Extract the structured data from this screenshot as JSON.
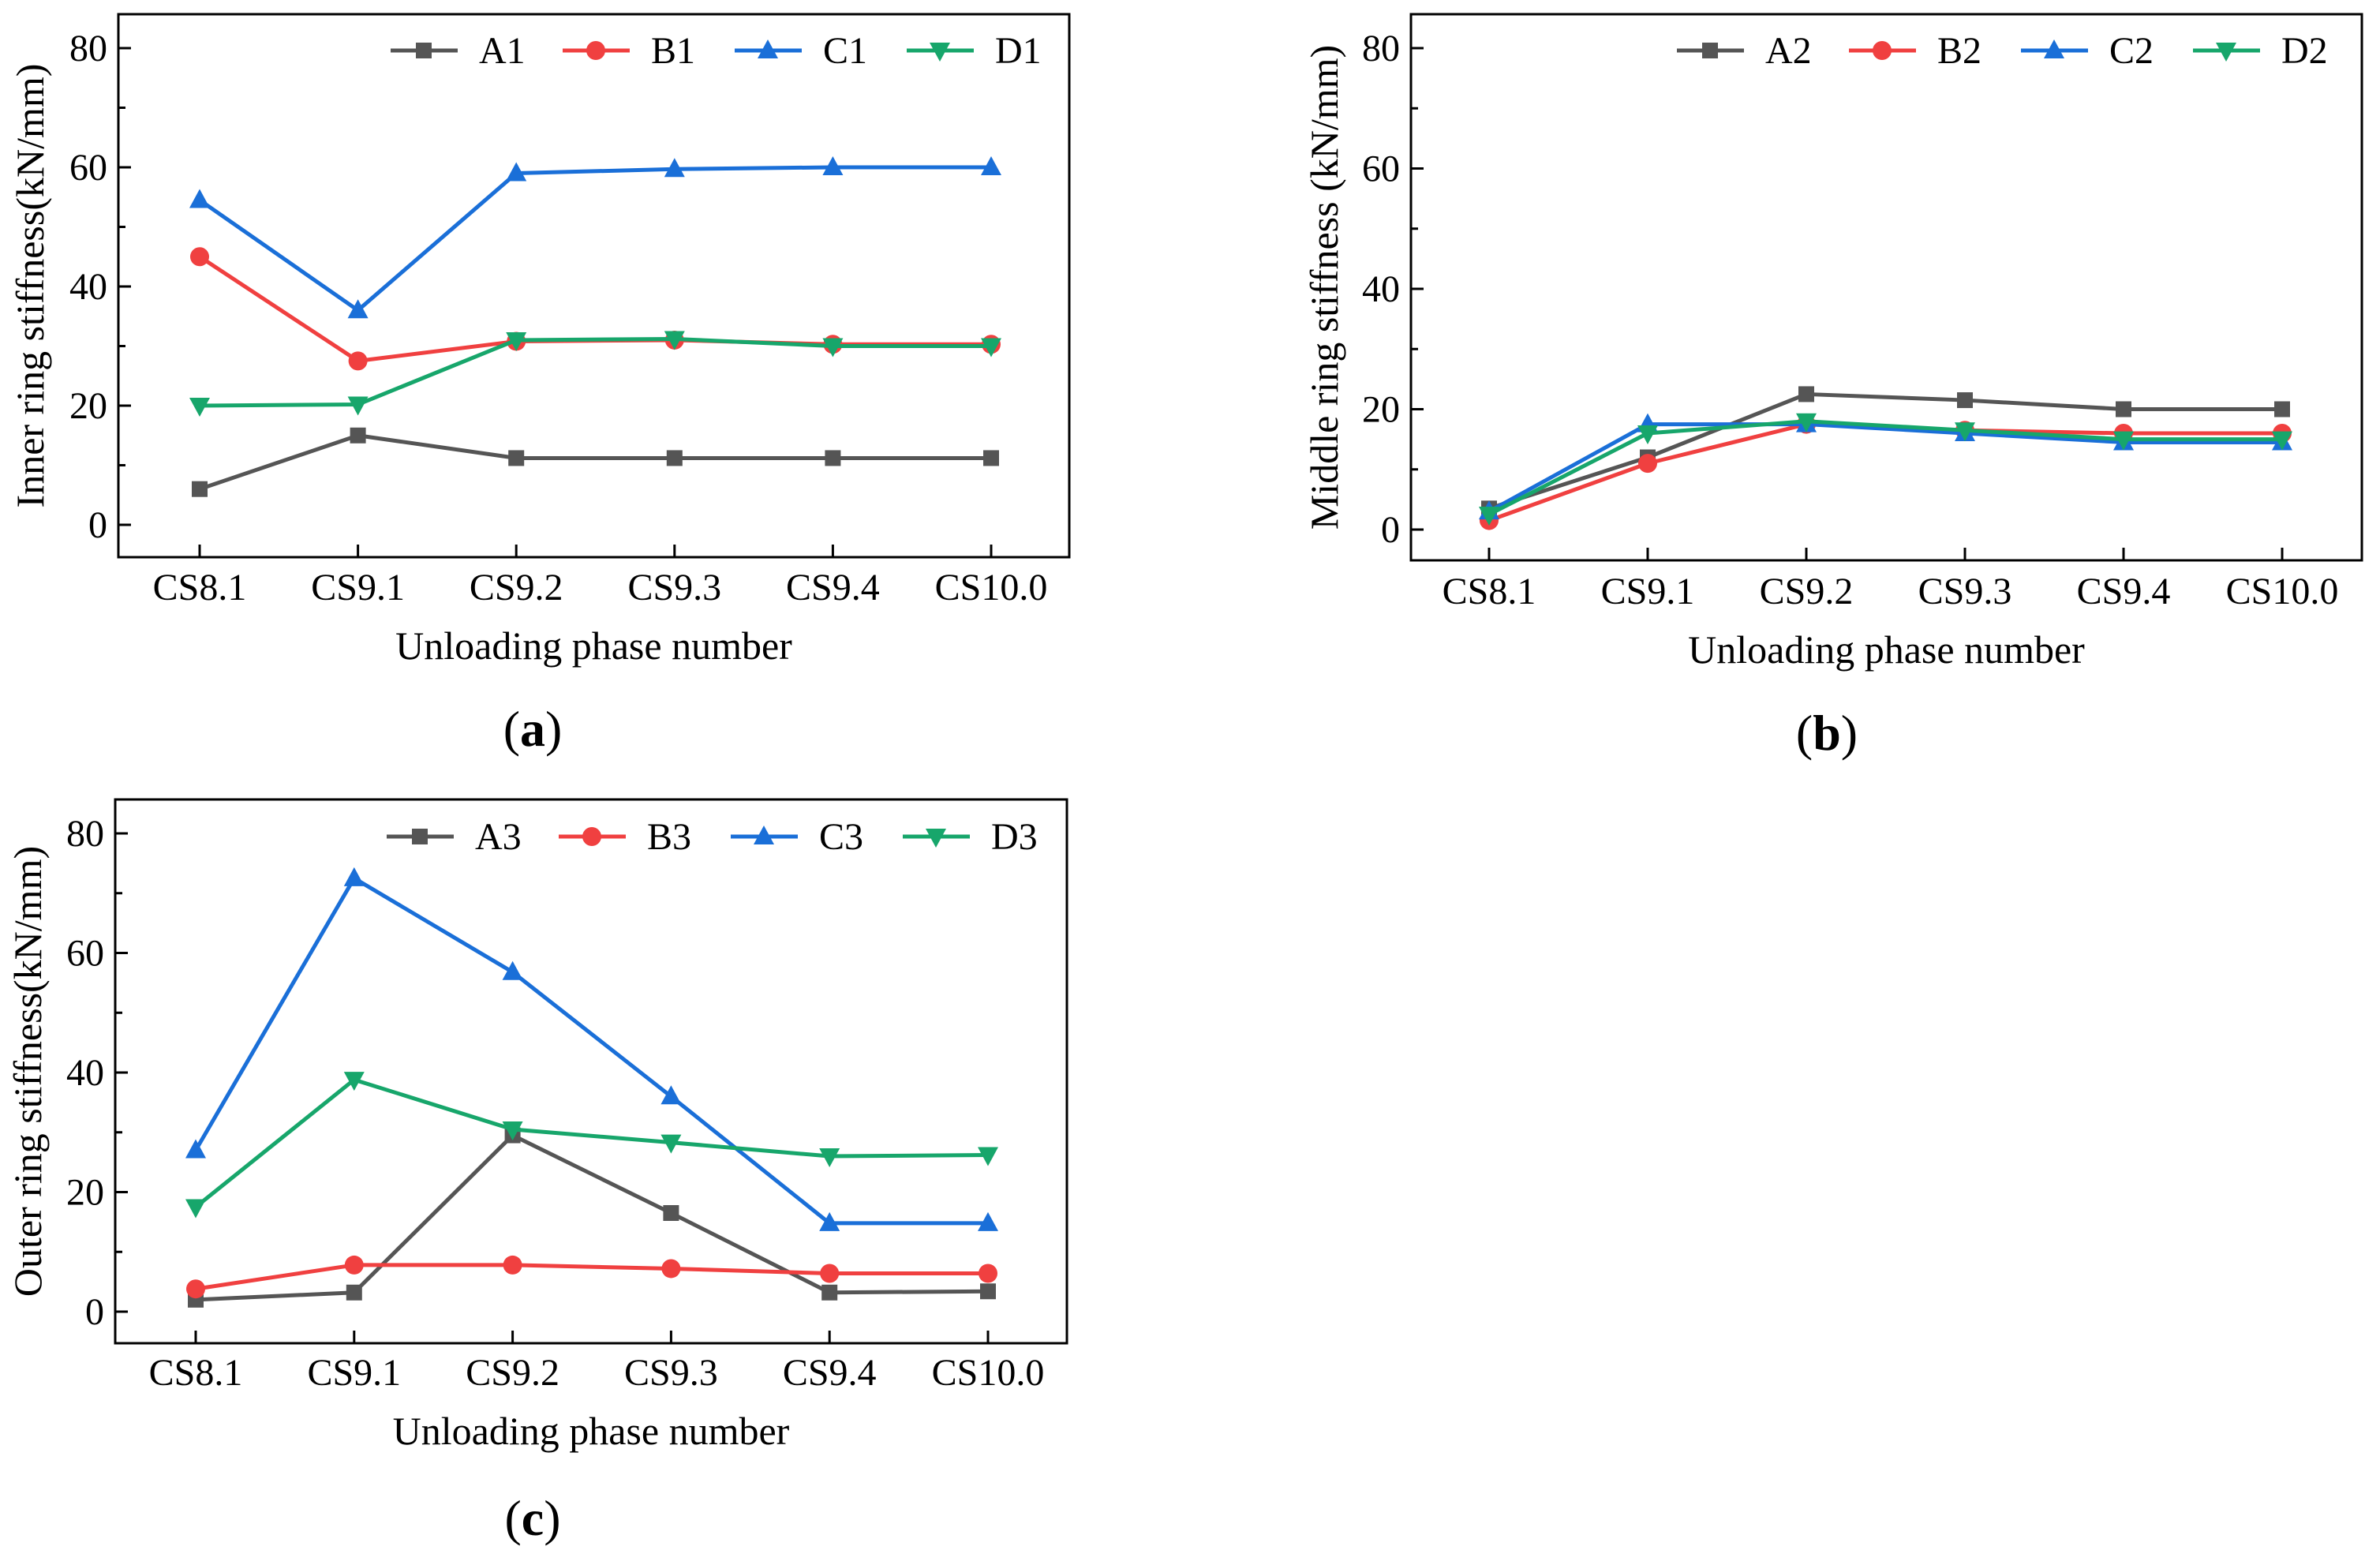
{
  "chart_data": [
    {
      "panel": "(a)",
      "type": "line",
      "categories": [
        "CS8.1",
        "CS9.1",
        "CS9.2",
        "CS9.3",
        "CS9.4",
        "CS10.0"
      ],
      "xlabel": "Unloading phase number",
      "ylabel": "Inner ring stiffness(kN/mm)",
      "ylim": [
        -5,
        85
      ],
      "yticks": [
        0,
        20,
        40,
        60,
        80
      ],
      "legend_position": "top-right",
      "series": [
        {
          "name": "A1",
          "color": "#555555",
          "marker": "square",
          "values": [
            6.0,
            15.0,
            11.2,
            11.2,
            11.2,
            11.2
          ]
        },
        {
          "name": "B1",
          "color": "#f04040",
          "marker": "circle",
          "values": [
            45.0,
            27.5,
            30.8,
            31.0,
            30.3,
            30.3
          ]
        },
        {
          "name": "C1",
          "color": "#1a6fd8",
          "marker": "triangle-up",
          "values": [
            54.5,
            36.0,
            59.0,
            59.7,
            60.0,
            60.0
          ]
        },
        {
          "name": "D1",
          "color": "#17a66b",
          "marker": "triangle-down",
          "values": [
            20.0,
            20.2,
            31.0,
            31.2,
            30.0,
            30.0
          ]
        }
      ]
    },
    {
      "panel": "(b)",
      "type": "line",
      "categories": [
        "CS8.1",
        "CS9.1",
        "CS9.2",
        "CS9.3",
        "CS9.4",
        "CS10.0"
      ],
      "xlabel": "Unloading phase number",
      "ylabel": "Middle ring stiffness (kN/mm)",
      "ylim": [
        -5,
        85
      ],
      "yticks": [
        0,
        20,
        40,
        60,
        80
      ],
      "legend_position": "top-right",
      "series": [
        {
          "name": "A2",
          "color": "#555555",
          "marker": "square",
          "values": [
            3.5,
            12.0,
            22.5,
            21.5,
            20.0,
            20.0
          ]
        },
        {
          "name": "B2",
          "color": "#f04040",
          "marker": "circle",
          "values": [
            1.5,
            11.0,
            17.5,
            16.5,
            16.0,
            16.0
          ]
        },
        {
          "name": "C2",
          "color": "#1a6fd8",
          "marker": "triangle-up",
          "values": [
            3.0,
            17.5,
            17.5,
            16.0,
            14.5,
            14.5
          ]
        },
        {
          "name": "D2",
          "color": "#17a66b",
          "marker": "triangle-down",
          "values": [
            2.5,
            16.0,
            18.0,
            16.5,
            15.0,
            15.0
          ]
        }
      ]
    },
    {
      "panel": "(c)",
      "type": "line",
      "categories": [
        "CS8.1",
        "CS9.1",
        "CS9.2",
        "CS9.3",
        "CS9.4",
        "CS10.0"
      ],
      "xlabel": "Unloading phase number",
      "ylabel": "Outer ring stiffness(kN/mm)",
      "ylim": [
        -5,
        85
      ],
      "yticks": [
        0,
        20,
        40,
        60,
        80
      ],
      "legend_position": "top-right",
      "series": [
        {
          "name": "A3",
          "color": "#555555",
          "marker": "square",
          "values": [
            2.0,
            3.2,
            29.5,
            16.5,
            3.2,
            3.4
          ]
        },
        {
          "name": "B3",
          "color": "#f04040",
          "marker": "circle",
          "values": [
            3.8,
            7.8,
            7.8,
            7.2,
            6.4,
            6.4
          ]
        },
        {
          "name": "C3",
          "color": "#1a6fd8",
          "marker": "triangle-up",
          "values": [
            27.0,
            72.5,
            56.8,
            36.0,
            14.8,
            14.8
          ]
        },
        {
          "name": "D3",
          "color": "#17a66b",
          "marker": "triangle-down",
          "values": [
            17.5,
            38.8,
            30.5,
            28.3,
            26.0,
            26.2
          ]
        }
      ]
    }
  ]
}
